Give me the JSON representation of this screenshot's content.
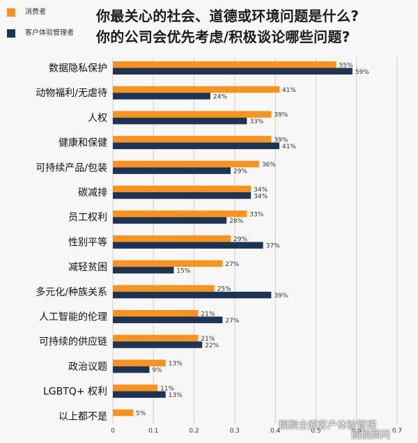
{
  "legend": [
    {
      "label": "消费者",
      "color": "#f7931e"
    },
    {
      "label": "客户体验管理者",
      "color": "#1f3354"
    }
  ],
  "title_lines": [
    "你最关心的社会、道德或环境问题是什么?",
    "你的公司会优先考虑/积极谈论哪些问题?"
  ],
  "watermark": "鹅鹅全面客户体验管理",
  "watermark_sub": "鹅鹅顾问",
  "chart_data": {
    "type": "bar",
    "orientation": "horizontal",
    "categories": [
      "数据隐私保护",
      "动物福利/无虐待",
      "人权",
      "健康和保健",
      "可持续产品/包装",
      "碳减排",
      "员工权利",
      "性别平等",
      "减轻贫困",
      "多元化/种族关系",
      "人工智能的伦理",
      "可持续的供应链",
      "政治议题",
      "LGBTQ+ 权利",
      "以上都不是"
    ],
    "series": [
      {
        "name": "消费者",
        "color": "#f7931e",
        "values": [
          0.55,
          0.41,
          0.39,
          0.39,
          0.36,
          0.34,
          0.33,
          0.29,
          0.27,
          0.25,
          0.21,
          0.21,
          0.13,
          0.11,
          0.05
        ],
        "labels": [
          "55%",
          "41%",
          "39%",
          "39%",
          "36%",
          "34%",
          "33%",
          "29%",
          "27%",
          "25%",
          "21%",
          "21%",
          "13%",
          "11%",
          "5%"
        ]
      },
      {
        "name": "客户体验管理者",
        "color": "#1f3354",
        "values": [
          0.59,
          0.24,
          0.33,
          0.41,
          0.29,
          0.34,
          0.28,
          0.37,
          0.15,
          0.39,
          0.27,
          0.22,
          0.09,
          0.13,
          null
        ],
        "labels": [
          "59%",
          "24%",
          "33%",
          "41%",
          "29%",
          "34%",
          "28%",
          "37%",
          "15%",
          "39%",
          "27%",
          "22%",
          "9%",
          "13%",
          ""
        ]
      }
    ],
    "xticks": [
      "0",
      "0.1",
      "0.2",
      "0.3",
      "0.4",
      "0.5",
      "0.6",
      "0.7"
    ],
    "xlim": [
      0,
      0.7
    ],
    "grid": true
  }
}
